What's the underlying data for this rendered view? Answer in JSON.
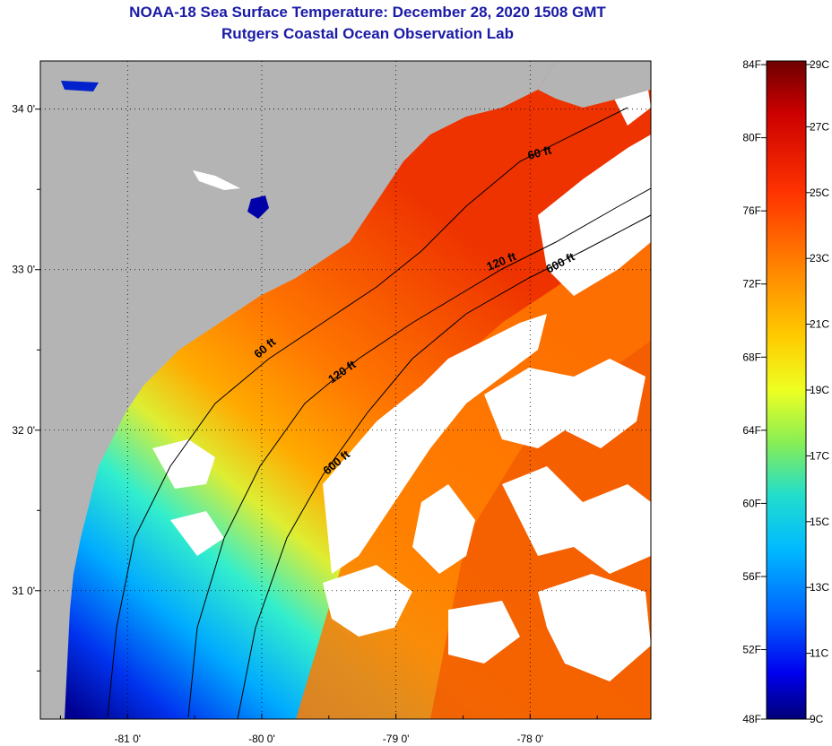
{
  "title": {
    "line1": "NOAA-18 Sea Surface Temperature:  December 28, 2020 1508 GMT",
    "line2": "Rutgers Coastal Ocean Observation Lab"
  },
  "map": {
    "lon_range": [
      -81.65,
      -77.1
    ],
    "lat_range": [
      30.2,
      34.3
    ],
    "lon_ticks": [
      {
        "value": -81,
        "label": "-81 0'"
      },
      {
        "value": -80,
        "label": "-80 0'"
      },
      {
        "value": -79,
        "label": "-79 0'"
      },
      {
        "value": -78,
        "label": "-78 0'"
      }
    ],
    "lat_ticks": [
      {
        "value": 34,
        "label": "34 0'"
      },
      {
        "value": 33,
        "label": "33 0'"
      },
      {
        "value": 32,
        "label": "32 0'"
      },
      {
        "value": 31,
        "label": "31 0'"
      }
    ],
    "contours": [
      {
        "label": "60 ft",
        "depth": 60
      },
      {
        "label": "120 ft",
        "depth": 120
      },
      {
        "label": "600 ft",
        "depth": 600
      }
    ],
    "colors": {
      "land": "#b4b4b4",
      "cloud": "#ffffff"
    }
  },
  "colorbar": {
    "fahrenheit": [
      "84F",
      "80F",
      "76F",
      "72F",
      "68F",
      "64F",
      "60F",
      "56F",
      "52F",
      "48F"
    ],
    "celsius": [
      "29C",
      "27C",
      "25C",
      "23C",
      "21C",
      "19C",
      "17C",
      "15C",
      "13C",
      "11C",
      "9C"
    ],
    "range_c": [
      9,
      29
    ]
  }
}
